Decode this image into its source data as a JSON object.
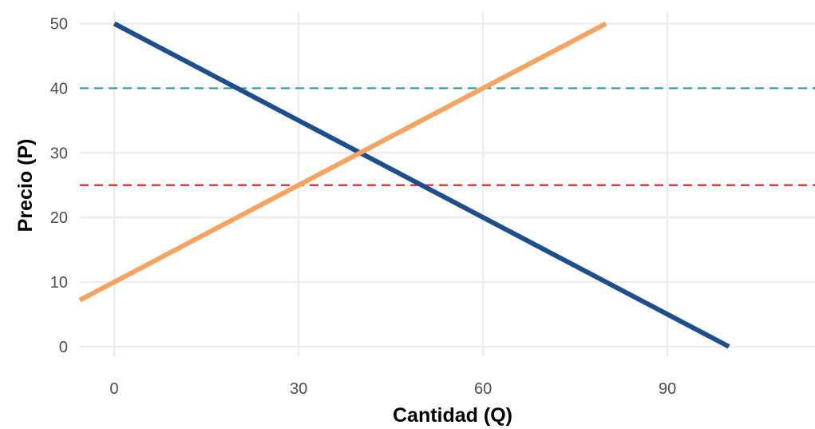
{
  "chart_data": {
    "type": "line",
    "xlabel": "Cantidad (Q)",
    "ylabel": "Precio (P)",
    "xlim": [
      -5.6,
      114
    ],
    "ylim": [
      -1.5,
      51.8
    ],
    "x_ticks": [
      0,
      30,
      60,
      90
    ],
    "y_ticks": [
      0,
      10,
      20,
      30,
      40,
      50
    ],
    "x_tick_labels": [
      "0",
      "30",
      "60",
      "90"
    ],
    "y_tick_labels": [
      "0",
      "10",
      "20",
      30,
      "40",
      "50"
    ],
    "grid": true,
    "legend": "none",
    "series": [
      {
        "color": "#1f4e8c",
        "style": "solid",
        "points": [
          [
            0,
            50
          ],
          [
            100,
            0
          ]
        ]
      },
      {
        "color": "#f4a460",
        "style": "solid",
        "points": [
          [
            -5.6,
            7.2
          ],
          [
            80,
            50
          ]
        ]
      }
    ],
    "hlines": [
      {
        "y": 40,
        "color": "#2a9d8f",
        "style": "dashed"
      },
      {
        "y": 25,
        "color": "#d62f2f",
        "style": "dashed"
      }
    ]
  }
}
